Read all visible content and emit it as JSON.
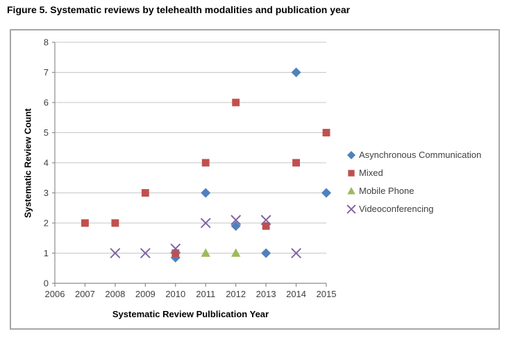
{
  "figure_title": "Figure 5. Systematic reviews by telehealth modalities and publication year",
  "chart_data": {
    "type": "scatter",
    "title": "",
    "xlabel": "Systematic Review Pulblication Year",
    "ylabel": "Systematic Review Count",
    "xlim": [
      2006,
      2015
    ],
    "ylim": [
      0,
      8
    ],
    "x_ticks": [
      2006,
      2007,
      2008,
      2009,
      2010,
      2011,
      2012,
      2013,
      2014,
      2015
    ],
    "y_ticks": [
      0,
      1,
      2,
      3,
      4,
      5,
      6,
      7,
      8
    ],
    "grid": "horizontal",
    "legend_position": "right",
    "colors": {
      "grid": "#c6c6c6",
      "axis": "#8c8c8c",
      "tick_text": "#3f3f3f",
      "frame_border": "#a6a6a6"
    },
    "series": [
      {
        "name": "Asynchronous Communication",
        "marker": "diamond",
        "color": "#4f81bd",
        "points": [
          [
            2010,
            0.85
          ],
          [
            2011,
            3
          ],
          [
            2012,
            1.9
          ],
          [
            2013,
            1
          ],
          [
            2014,
            7
          ],
          [
            2015,
            3
          ]
        ]
      },
      {
        "name": "Mixed",
        "marker": "square",
        "color": "#c0504d",
        "points": [
          [
            2007,
            2
          ],
          [
            2008,
            2
          ],
          [
            2009,
            3
          ],
          [
            2010,
            1
          ],
          [
            2011,
            4
          ],
          [
            2012,
            6
          ],
          [
            2013,
            1.9
          ],
          [
            2014,
            4
          ],
          [
            2015,
            5
          ]
        ]
      },
      {
        "name": "Mobile Phone",
        "marker": "triangle",
        "color": "#9bbb59",
        "points": [
          [
            2011,
            1
          ],
          [
            2012,
            1
          ]
        ]
      },
      {
        "name": "Videoconferencing",
        "marker": "x",
        "color": "#8064a2",
        "points": [
          [
            2008,
            1
          ],
          [
            2009,
            1
          ],
          [
            2010,
            1.15
          ],
          [
            2011,
            2
          ],
          [
            2012,
            2.1
          ],
          [
            2013,
            2.1
          ],
          [
            2014,
            1
          ]
        ]
      }
    ]
  }
}
